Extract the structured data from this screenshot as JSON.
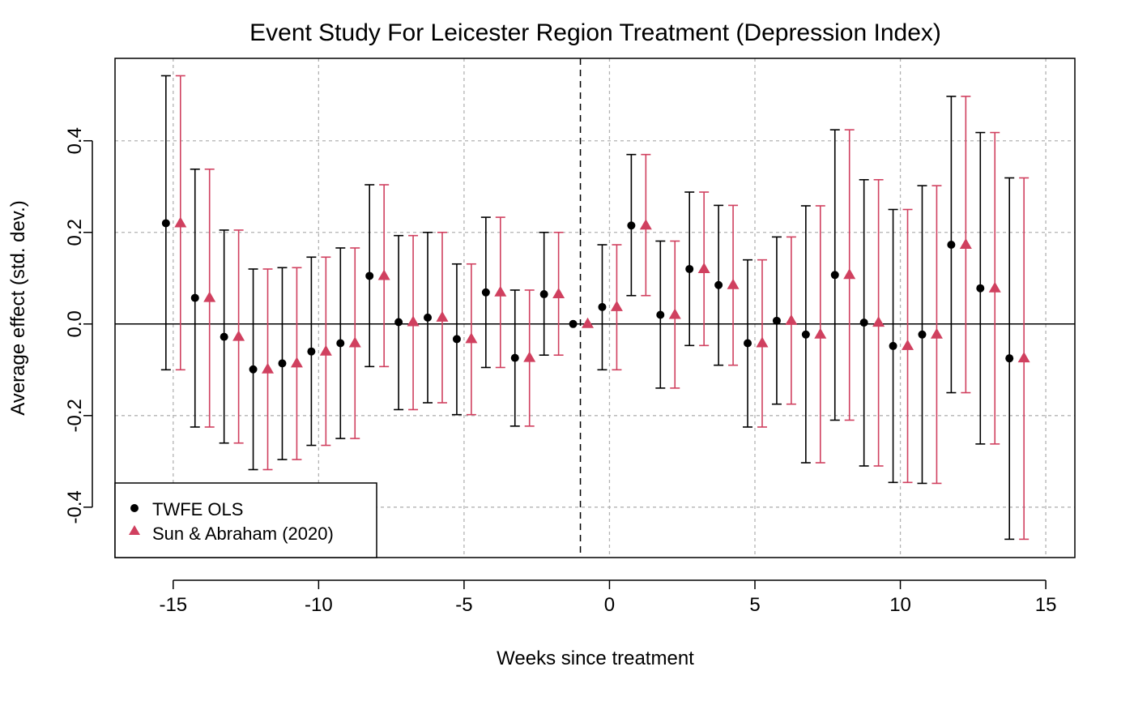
{
  "chart_data": {
    "type": "scatter",
    "title": "Event Study For Leicester Region Treatment (Depression Index)",
    "xlabel": "Weeks since treatment",
    "ylabel": "Average effect (std. dev.)",
    "xlim": [
      -17,
      16
    ],
    "ylim": [
      -0.51,
      0.58
    ],
    "x_ticks": [
      -15,
      -10,
      -5,
      0,
      5,
      10,
      15
    ],
    "y_ticks": [
      -0.4,
      -0.2,
      0.0,
      0.2,
      0.4
    ],
    "x_tick_labels": [
      "-15",
      "-10",
      "-5",
      "0",
      "5",
      "10",
      "15"
    ],
    "y_tick_labels": [
      "-0.4",
      "-0.2",
      "0.0",
      "0.2",
      "0.4"
    ],
    "grid": true,
    "reference_hline": 0,
    "reference_vline": -1,
    "legend": {
      "position": "bottom-left"
    },
    "x": [
      -15,
      -14,
      -13,
      -12,
      -11,
      -10,
      -9,
      -8,
      -7,
      -6,
      -5,
      -4,
      -3,
      -2,
      -1,
      0,
      1,
      2,
      3,
      4,
      5,
      6,
      7,
      8,
      9,
      10,
      11,
      12,
      13,
      14
    ],
    "series": [
      {
        "name": "TWFE OLS",
        "marker": "circle",
        "color": "#000000",
        "x_offset": -0.25,
        "estimate": [
          0.22,
          0.057,
          -0.028,
          -0.099,
          -0.086,
          -0.06,
          -0.042,
          0.105,
          0.004,
          0.014,
          -0.033,
          0.069,
          -0.074,
          0.065,
          0.0,
          0.037,
          0.215,
          0.02,
          0.12,
          0.085,
          -0.042,
          0.007,
          -0.023,
          0.107,
          0.003,
          -0.048,
          -0.023,
          0.173,
          0.078,
          -0.075
        ],
        "ci_low": [
          -0.1,
          -0.225,
          -0.26,
          -0.318,
          -0.296,
          -0.265,
          -0.25,
          -0.093,
          -0.187,
          -0.172,
          -0.198,
          -0.095,
          -0.223,
          -0.068,
          null,
          -0.1,
          0.062,
          -0.14,
          -0.047,
          -0.09,
          -0.225,
          -0.175,
          -0.303,
          -0.21,
          -0.31,
          -0.346,
          -0.348,
          -0.15,
          -0.262,
          -0.47
        ],
        "ci_high": [
          0.542,
          0.338,
          0.205,
          0.12,
          0.123,
          0.146,
          0.166,
          0.304,
          0.193,
          0.2,
          0.131,
          0.233,
          0.074,
          0.2,
          null,
          0.173,
          0.37,
          0.181,
          0.288,
          0.259,
          0.14,
          0.19,
          0.258,
          0.424,
          0.315,
          0.25,
          0.302,
          0.497,
          0.418,
          0.319
        ]
      },
      {
        "name": "Sun & Abraham (2020)",
        "marker": "triangle",
        "color": "#d0405f",
        "x_offset": 0.25,
        "estimate": [
          0.22,
          0.057,
          -0.028,
          -0.099,
          -0.086,
          -0.06,
          -0.042,
          0.105,
          0.004,
          0.014,
          -0.033,
          0.069,
          -0.074,
          0.065,
          0.0,
          0.037,
          0.215,
          0.02,
          0.12,
          0.085,
          -0.042,
          0.007,
          -0.023,
          0.107,
          0.003,
          -0.048,
          -0.023,
          0.173,
          0.078,
          -0.075
        ],
        "ci_low": [
          -0.1,
          -0.225,
          -0.26,
          -0.318,
          -0.296,
          -0.265,
          -0.25,
          -0.093,
          -0.187,
          -0.172,
          -0.198,
          -0.095,
          -0.223,
          -0.068,
          null,
          -0.1,
          0.062,
          -0.14,
          -0.047,
          -0.09,
          -0.225,
          -0.175,
          -0.303,
          -0.21,
          -0.31,
          -0.346,
          -0.348,
          -0.15,
          -0.262,
          -0.47
        ],
        "ci_high": [
          0.542,
          0.338,
          0.205,
          0.12,
          0.123,
          0.146,
          0.166,
          0.304,
          0.193,
          0.2,
          0.131,
          0.233,
          0.074,
          0.2,
          null,
          0.173,
          0.37,
          0.181,
          0.288,
          0.259,
          0.14,
          0.19,
          0.258,
          0.424,
          0.315,
          0.25,
          0.302,
          0.497,
          0.418,
          0.319
        ]
      }
    ]
  }
}
